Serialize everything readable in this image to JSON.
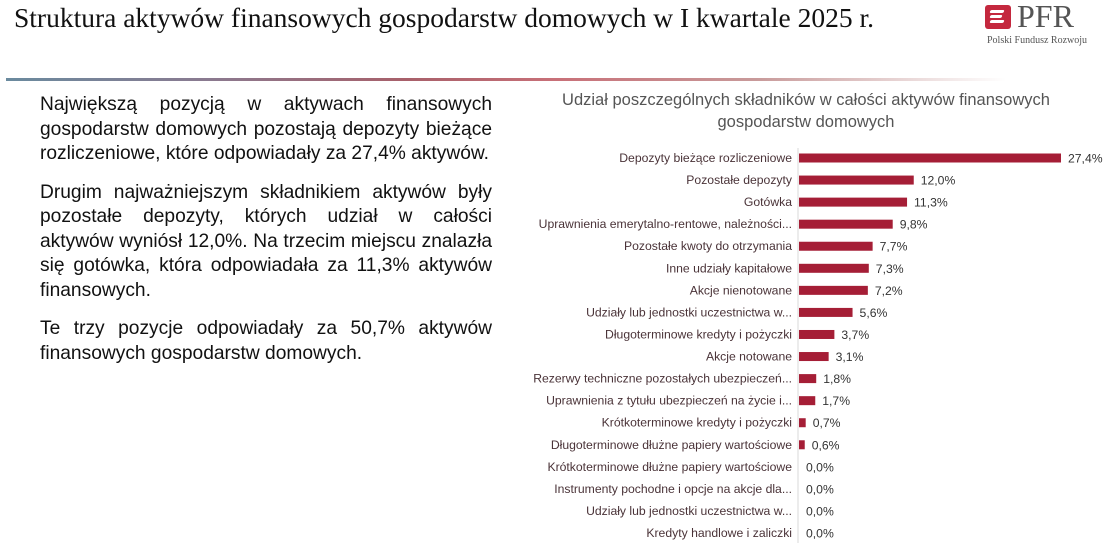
{
  "header": {
    "title": "Struktura aktywów finansowych gospodarstw domowych w I kwartale 2025 r.",
    "logo_text": "PFR",
    "logo_subtitle": "Polski Fundusz Rozwoju",
    "accent_color": "#c4283e"
  },
  "body": {
    "paragraphs": [
      "Największą pozycją w aktywach finansowych gospodarstw domowych pozostają depozyty bieżące rozliczeniowe, które odpowiadały za 27,4% aktywów.",
      "Drugim najważniejszym składnikiem aktywów były pozostałe depozyty, których udział w całości aktywów wyniósł 12,0%. Na trzecim miejscu znalazła się gotówka, która odpowiadała za 11,3% aktywów finansowych.",
      "Te trzy pozycje odpowiadały za 50,7% aktywów finansowych gospodarstw domowych."
    ]
  },
  "chart_data": {
    "type": "bar",
    "orientation": "horizontal",
    "title": "Udział poszczególnych składników w całości aktywów finansowych gospodarstw domowych",
    "bar_color": "#a51e36",
    "grid": false,
    "categories": [
      "Depozyty bieżące rozliczeniowe",
      "Pozostałe depozyty",
      "Gotówka",
      "Uprawnienia emerytalno-rentowe, należności...",
      "Pozostałe kwoty do otrzymania",
      "Inne udziały kapitałowe",
      "Akcje nienotowane",
      "Udziały lub jednostki uczestnictwa w...",
      "Długoterminowe kredyty i pożyczki",
      "Akcje notowane",
      "Rezerwy techniczne pozostałych ubezpieczeń...",
      "Uprawnienia z tytułu ubezpieczeń na życie i...",
      "Krótkoterminowe kredyty i pożyczki",
      "Długoterminowe dłużne papiery wartościowe",
      "Krótkoterminowe dłużne papiery wartościowe",
      "Instrumenty pochodne i opcje na akcje dla...",
      "Udziały lub jednostki uczestnictwa w...",
      "Kredyty handlowe i zaliczki"
    ],
    "values": [
      27.4,
      12.0,
      11.3,
      9.8,
      7.7,
      7.3,
      7.2,
      5.6,
      3.7,
      3.1,
      1.8,
      1.7,
      0.7,
      0.6,
      0.0,
      0.0,
      0.0,
      0.0
    ],
    "value_labels": [
      "27,4%",
      "12,0%",
      "11,3%",
      "9,8%",
      "7,7%",
      "7,3%",
      "7,2%",
      "5,6%",
      "3,7%",
      "3,1%",
      "1,8%",
      "1,7%",
      "0,7%",
      "0,6%",
      "0,0%",
      "0,0%",
      "0,0%",
      "0,0%"
    ],
    "xlim": [
      0,
      27.4
    ]
  }
}
